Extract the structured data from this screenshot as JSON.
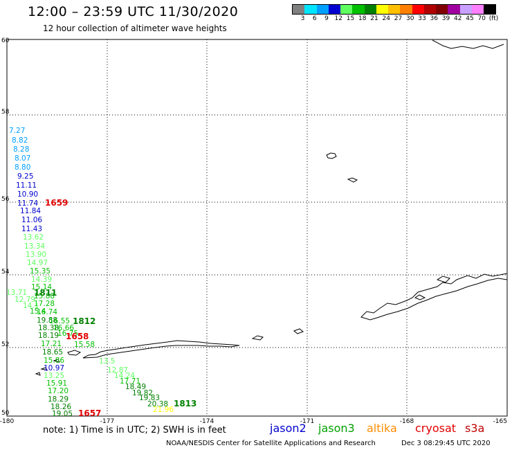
{
  "header": {
    "title": "12:00 – 23:59 UTC 11/30/2020",
    "subtitle": "12 hour collection of altimeter wave heights"
  },
  "legend": {
    "labels": [
      "3",
      "6",
      "9",
      "12",
      "15",
      "18",
      "21",
      "24",
      "27",
      "30",
      "33",
      "36",
      "39",
      "42",
      "45",
      "70",
      "(ft)"
    ],
    "colors": [
      "#808080",
      "#00e5ff",
      "#00a0ff",
      "#0000d0",
      "#60ff60",
      "#00c000",
      "#008000",
      "#ffff00",
      "#ffc000",
      "#ff8000",
      "#ff0000",
      "#b00000",
      "#800000",
      "#a000a0",
      "#c8a0ff",
      "#ff80ff",
      "#000000"
    ]
  },
  "axes": {
    "x_ticks": [
      "-180",
      "-177",
      "-174",
      "-171",
      "-168",
      "-165"
    ],
    "y_ticks": [
      "60",
      "58",
      "56",
      "54",
      "52",
      "50"
    ]
  },
  "footer": {
    "note": "note:  1) Time is in UTC; 2) SWH is in feet",
    "satellites": [
      {
        "name": "jason2",
        "color": "#0000d0"
      },
      {
        "name": "jason3",
        "color": "#00a000"
      },
      {
        "name": "altika",
        "color": "#ff8c00"
      },
      {
        "name": "cryosat",
        "color": "#e00000"
      },
      {
        "name": "s3a",
        "color": "#c00000"
      }
    ],
    "credit": "NOAA/NESDIS Center for Satellite Applications and Research",
    "timestamp": "Dec  3 08:29:45 UTC 2020"
  },
  "observations": [
    {
      "t": "7.27",
      "c": "#00a0ff"
    },
    {
      "t": "8.82",
      "c": "#00a0ff"
    },
    {
      "t": "8.28",
      "c": "#00a0ff"
    },
    {
      "t": "8.07",
      "c": "#00a0ff"
    },
    {
      "t": "8.80",
      "c": "#00a0ff"
    },
    {
      "t": "9.25",
      "c": "#0000d0"
    },
    {
      "t": "11.11",
      "c": "#0000d0"
    },
    {
      "t": "10.90",
      "c": "#0000d0"
    },
    {
      "t": "11.74",
      "c": "#0000d0"
    },
    {
      "t": "11.84",
      "c": "#0000d0"
    },
    {
      "t": "11.06",
      "c": "#0000d0"
    },
    {
      "t": "11.43",
      "c": "#0000d0"
    },
    {
      "t": "13.62",
      "c": "#60ff60"
    },
    {
      "t": "13.34",
      "c": "#60ff60"
    },
    {
      "t": "13.90",
      "c": "#60ff60"
    },
    {
      "t": "14.97",
      "c": "#60ff60"
    },
    {
      "t": "15.35",
      "c": "#00c000"
    },
    {
      "t": "14.39",
      "c": "#60ff60"
    },
    {
      "t": "15.14",
      "c": "#00c000"
    },
    {
      "t": "13.71",
      "c": "#60ff60"
    },
    {
      "t": "15.88",
      "c": "#00c000"
    },
    {
      "t": "12.79",
      "c": "#60ff60"
    },
    {
      "t": "17.28",
      "c": "#00c000"
    },
    {
      "t": "14.1",
      "c": "#60ff60"
    },
    {
      "t": "15.4",
      "c": "#00c000"
    },
    {
      "t": "16.74",
      "c": "#00c000"
    },
    {
      "t": "19.88",
      "c": "#008000"
    },
    {
      "t": "16.55",
      "c": "#00c000"
    },
    {
      "t": "18.38",
      "c": "#008000"
    },
    {
      "t": "16.66",
      "c": "#00c000"
    },
    {
      "t": "18.19",
      "c": "#008000"
    },
    {
      "t": "16.75",
      "c": "#00c000"
    },
    {
      "t": "17.21",
      "c": "#00c000"
    },
    {
      "t": "15.58",
      "c": "#00c000"
    },
    {
      "t": "18.65",
      "c": "#008000"
    },
    {
      "t": "15.86",
      "c": "#00c000"
    },
    {
      "t": "10.97",
      "c": "#0000d0"
    },
    {
      "t": "13.5",
      "c": "#60ff60"
    },
    {
      "t": "12.87",
      "c": "#60ff60"
    },
    {
      "t": "13.25",
      "c": "#60ff60"
    },
    {
      "t": "14.24",
      "c": "#60ff60"
    },
    {
      "t": "15.91",
      "c": "#00c000"
    },
    {
      "t": "17.71",
      "c": "#00c000"
    },
    {
      "t": "17.20",
      "c": "#00c000"
    },
    {
      "t": "18.49",
      "c": "#008000"
    },
    {
      "t": "18.29",
      "c": "#008000"
    },
    {
      "t": "19.82",
      "c": "#008000"
    },
    {
      "t": "18.26",
      "c": "#008000"
    },
    {
      "t": "19.83",
      "c": "#008000"
    },
    {
      "t": "19.05",
      "c": "#008000"
    },
    {
      "t": "20.38",
      "c": "#008000"
    },
    {
      "t": "21.96",
      "c": "#ffff00"
    }
  ],
  "time_labels": [
    {
      "t": "1659",
      "c": "#e00000"
    },
    {
      "t": "1811",
      "c": "#008000"
    },
    {
      "t": "1812",
      "c": "#008000"
    },
    {
      "t": "1658",
      "c": "#e00000"
    },
    {
      "t": "1657",
      "c": "#e00000"
    },
    {
      "t": "1813",
      "c": "#008000"
    }
  ]
}
